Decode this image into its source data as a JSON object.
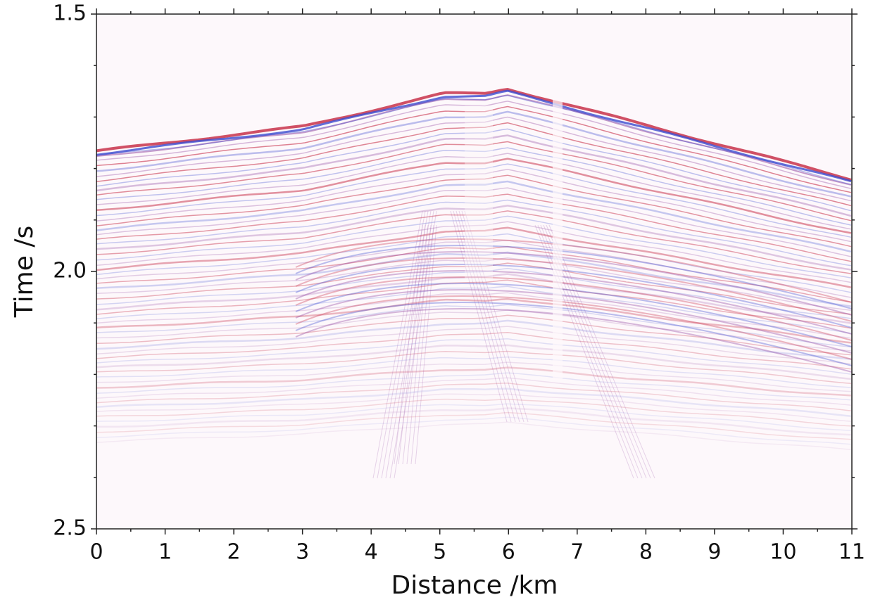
{
  "chart_data": {
    "type": "seismic-section",
    "x_label": "Distance /km",
    "y_label": "Time /s",
    "xlim": [
      0,
      11
    ],
    "xticks": [
      0,
      1,
      2,
      3,
      4,
      5,
      6,
      7,
      8,
      9,
      10,
      11
    ],
    "x_minor_ticks": [
      0.5,
      1.5,
      2.5,
      3.5,
      4.5,
      5.5,
      6.5,
      7.5,
      8.5,
      9.5,
      10.5
    ],
    "ylim": [
      1.5,
      2.5
    ],
    "y_inverted": true,
    "yticks": [
      1.5,
      {
        "value": 2,
        "label": "2.0"
      },
      2.5
    ],
    "y_minor_ticks": [
      1.6,
      1.7,
      1.8,
      1.9,
      2.1,
      2.2,
      2.3,
      2.4
    ],
    "colors": [
      "#c8324a",
      "#3a4ad0",
      "#8a3a9a"
    ]
  }
}
